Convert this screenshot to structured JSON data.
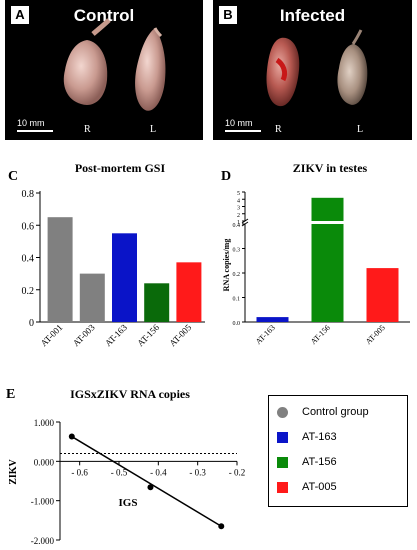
{
  "panels": {
    "a": {
      "letter": "A",
      "title": "Control",
      "scale": "10 mm",
      "left": "R",
      "right": "L"
    },
    "b": {
      "letter": "B",
      "title": "Infected",
      "scale": "10 mm",
      "left": "R",
      "right": "L"
    },
    "c": {
      "letter": "C"
    },
    "d": {
      "letter": "D"
    },
    "e": {
      "letter": "E"
    }
  },
  "legend": {
    "items": [
      {
        "label": "Control group",
        "color": "#808080",
        "shape": "circle"
      },
      {
        "label": "AT-163",
        "color": "#0a14c8",
        "shape": "square"
      },
      {
        "label": "AT-156",
        "color": "#0a8a0a",
        "shape": "square"
      },
      {
        "label": "AT-005",
        "color": "#ff1a1a",
        "shape": "square"
      }
    ]
  },
  "chart_data": [
    {
      "type": "bar",
      "title": "Post-mortem GSI",
      "categories": [
        "AT-001",
        "AT-003",
        "AT-163",
        "AT-156",
        "AT-005"
      ],
      "values": [
        0.65,
        0.3,
        0.55,
        0.24,
        0.37
      ],
      "colors": [
        "#808080",
        "#808080",
        "#0a14c8",
        "#0a6a0a",
        "#ff1a1a"
      ],
      "ylim": [
        0,
        0.8
      ],
      "yticks": [
        0,
        0.2,
        0.4,
        0.6,
        0.8
      ],
      "ytick_labels": [
        "0",
        "0.2",
        "0.4",
        "0.6",
        "0.8"
      ]
    },
    {
      "type": "bar",
      "title": "ZIKV in testes",
      "ylabel": "RNA copies/mg",
      "categories": [
        "AT-163",
        "AT-156",
        "AT-005"
      ],
      "values": [
        0.02,
        4.2,
        0.22
      ],
      "colors": [
        "#0a14c8",
        "#0a8a0a",
        "#ff1a1a"
      ],
      "broken_axis": true,
      "lower_ticks": [
        0,
        0.1,
        0.2,
        0.3,
        0.4
      ],
      "lower_tick_labels": [
        "0.0",
        "0.1",
        "0.2",
        "0.3",
        "0.4"
      ],
      "upper_ticks": [
        1,
        2,
        3,
        4,
        5
      ],
      "upper_tick_labels": [
        "1",
        "2",
        "3",
        "4",
        "5"
      ]
    },
    {
      "type": "scatter",
      "title": "IGSxZIKV RNA copies",
      "xlabel": "IGS",
      "ylabel": "ZIKV",
      "xlim": [
        -0.65,
        -0.2
      ],
      "ylim": [
        -2.0,
        1.0
      ],
      "xticks": [
        -0.6,
        -0.5,
        -0.4,
        -0.3,
        -0.2
      ],
      "xtick_labels": [
        "- 0.6",
        "- 0.5",
        "- 0.4",
        "- 0.3",
        "- 0.2"
      ],
      "yticks": [
        1,
        0,
        -1,
        -2
      ],
      "ytick_labels": [
        "1.000",
        "0.000",
        "-1.000",
        "-2.000"
      ],
      "points": [
        {
          "x": -0.62,
          "y": 0.63
        },
        {
          "x": -0.42,
          "y": -0.66
        },
        {
          "x": -0.24,
          "y": -1.65
        }
      ],
      "fit_line": [
        {
          "x": -0.62,
          "y": 0.63
        },
        {
          "x": -0.24,
          "y": -1.65
        }
      ],
      "reference_y": 0.2
    }
  ]
}
